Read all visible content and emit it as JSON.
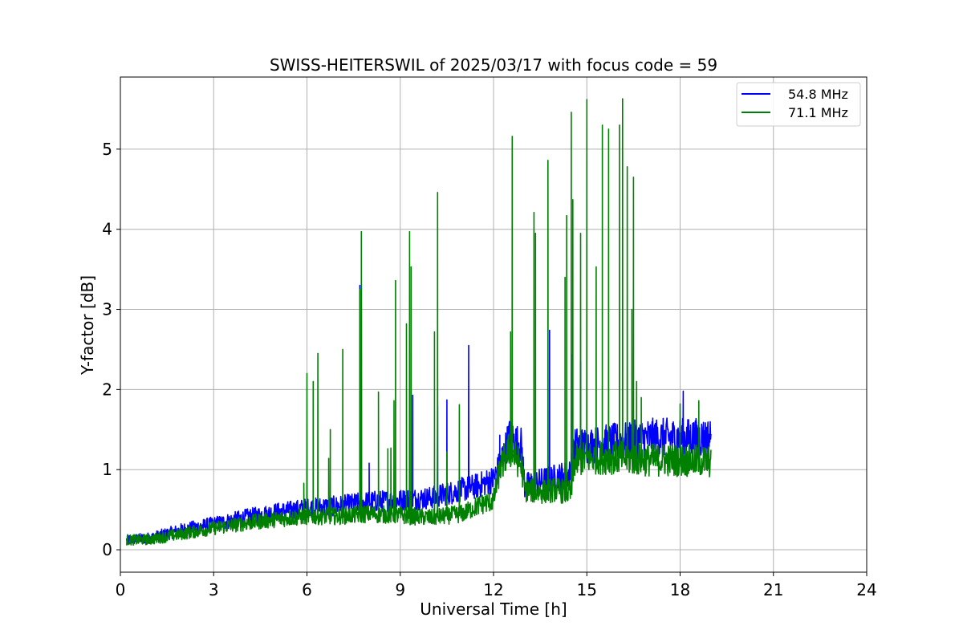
{
  "chart_data": {
    "type": "line",
    "title": "SWISS-HEITERSWIL of 2025/03/17 with focus code = 59",
    "xlabel": "Universal Time [h]",
    "ylabel": "Y-factor [dB]",
    "xlim": [
      0,
      24
    ],
    "ylim": [
      -0.28,
      5.9
    ],
    "xticks": [
      0,
      3,
      6,
      9,
      12,
      15,
      18,
      21,
      24
    ],
    "yticks": [
      0,
      1,
      2,
      3,
      4,
      5
    ],
    "grid": true,
    "legend_position": "top-right",
    "series": [
      {
        "name": "54.8 MHz",
        "color": "#0000ff",
        "baseline": [
          [
            0.2,
            0.12
          ],
          [
            1,
            0.15
          ],
          [
            2,
            0.25
          ],
          [
            3,
            0.32
          ],
          [
            4,
            0.4
          ],
          [
            5,
            0.47
          ],
          [
            6,
            0.52
          ],
          [
            7,
            0.55
          ],
          [
            8,
            0.6
          ],
          [
            9,
            0.62
          ],
          [
            10,
            0.65
          ],
          [
            11,
            0.75
          ],
          [
            11.5,
            0.8
          ],
          [
            12,
            0.88
          ],
          [
            12.2,
            1.05
          ],
          [
            12.5,
            1.4
          ],
          [
            12.9,
            1.3
          ],
          [
            13.0,
            0.8
          ],
          [
            13.5,
            0.85
          ],
          [
            14,
            0.9
          ],
          [
            14.5,
            0.95
          ],
          [
            14.6,
            1.3
          ],
          [
            15,
            1.3
          ],
          [
            16,
            1.35
          ],
          [
            17,
            1.4
          ],
          [
            18,
            1.4
          ],
          [
            19,
            1.4
          ]
        ],
        "spikes": [
          [
            7.7,
            3.3
          ],
          [
            7.75,
            3.3
          ],
          [
            8.0,
            1.08
          ],
          [
            9.4,
            1.93
          ],
          [
            10.2,
            1.8
          ],
          [
            10.5,
            1.87
          ],
          [
            11.2,
            2.55
          ],
          [
            12.2,
            1.43
          ],
          [
            13.8,
            2.74
          ],
          [
            14.5,
            2.44
          ],
          [
            14.8,
            2.35
          ],
          [
            18.1,
            1.98
          ]
        ]
      },
      {
        "name": "71.1 MHz",
        "color": "#008000",
        "baseline": [
          [
            0.2,
            0.12
          ],
          [
            1,
            0.13
          ],
          [
            2,
            0.2
          ],
          [
            3,
            0.27
          ],
          [
            4,
            0.33
          ],
          [
            5,
            0.38
          ],
          [
            6,
            0.42
          ],
          [
            7,
            0.42
          ],
          [
            8,
            0.45
          ],
          [
            9,
            0.43
          ],
          [
            10,
            0.4
          ],
          [
            11,
            0.45
          ],
          [
            11.5,
            0.55
          ],
          [
            12,
            0.62
          ],
          [
            12.2,
            1.0
          ],
          [
            12.5,
            1.25
          ],
          [
            12.9,
            1.05
          ],
          [
            13.0,
            0.75
          ],
          [
            13.5,
            0.72
          ],
          [
            14,
            0.75
          ],
          [
            14.5,
            0.7
          ],
          [
            14.6,
            1.1
          ],
          [
            15,
            1.15
          ],
          [
            16,
            1.15
          ],
          [
            17,
            1.12
          ],
          [
            18,
            1.12
          ],
          [
            19,
            1.1
          ]
        ],
        "spikes": [
          [
            5.9,
            0.83
          ],
          [
            6.0,
            2.2
          ],
          [
            6.2,
            2.1
          ],
          [
            6.35,
            2.45
          ],
          [
            6.75,
            1.5
          ],
          [
            6.7,
            1.14
          ],
          [
            7.15,
            2.5
          ],
          [
            7.7,
            3.25
          ],
          [
            7.75,
            3.97
          ],
          [
            8.3,
            1.97
          ],
          [
            8.6,
            1.26
          ],
          [
            8.7,
            1.27
          ],
          [
            8.8,
            1.86
          ],
          [
            8.85,
            3.36
          ],
          [
            9.2,
            2.82
          ],
          [
            9.3,
            3.97
          ],
          [
            9.35,
            3.53
          ],
          [
            10.1,
            2.72
          ],
          [
            10.2,
            4.46
          ],
          [
            10.5,
            1.22
          ],
          [
            10.9,
            1.81
          ],
          [
            12.6,
            5.16
          ],
          [
            12.55,
            2.72
          ],
          [
            13.3,
            4.21
          ],
          [
            13.35,
            3.95
          ],
          [
            13.75,
            4.86
          ],
          [
            14.3,
            3.4
          ],
          [
            14.35,
            4.17
          ],
          [
            14.5,
            5.46
          ],
          [
            14.55,
            4.37
          ],
          [
            14.8,
            3.95
          ],
          [
            15.0,
            5.62
          ],
          [
            15.3,
            3.53
          ],
          [
            15.5,
            5.3
          ],
          [
            15.7,
            5.25
          ],
          [
            16.05,
            5.3
          ],
          [
            16.15,
            5.63
          ],
          [
            16.3,
            4.78
          ],
          [
            16.5,
            4.65
          ],
          [
            16.45,
            3.0
          ],
          [
            16.6,
            2.1
          ],
          [
            16.75,
            1.9
          ],
          [
            18.0,
            1.82
          ],
          [
            18.6,
            1.86
          ]
        ]
      }
    ]
  }
}
